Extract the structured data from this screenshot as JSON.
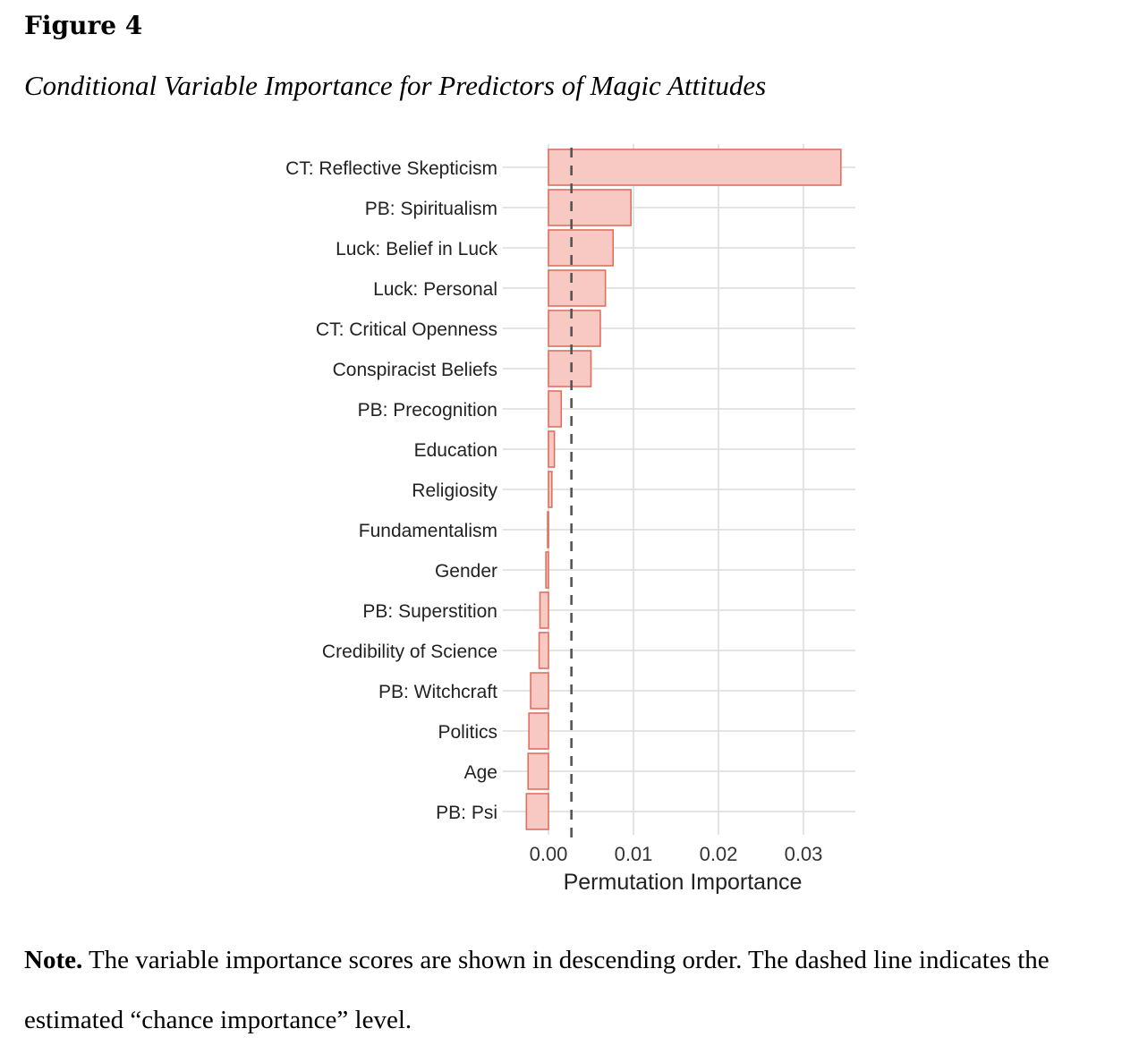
{
  "figure": {
    "label": "Figure 4",
    "title": "Conditional Variable Importance for Predictors of Magic Attitudes"
  },
  "note": {
    "lead": "Note.",
    "text": " The variable importance scores are shown in descending order. The dashed line indicates the estimated “chance importance” level."
  },
  "colors": {
    "bar_fill": "#f8c8c3",
    "bar_stroke": "#e0705f",
    "grid": "#dcdcdc",
    "dashed_line": "#555555"
  },
  "chart_data": {
    "type": "bar",
    "orientation": "horizontal",
    "categories": [
      "CT: Reflective Skepticism",
      "PB: Spiritualism",
      "Luck: Belief in Luck",
      "Luck: Personal",
      "CT: Critical Openness",
      "Conspiracist Beliefs",
      "PB: Precognition",
      "Education",
      "Religiosity",
      "Fundamentalism",
      "Gender",
      "PB: Superstition",
      "Credibility of Science",
      "PB: Witchcraft",
      "Politics",
      "Age",
      "PB: Psi"
    ],
    "values": [
      0.0344,
      0.0097,
      0.0076,
      0.0067,
      0.0061,
      0.005,
      0.0015,
      0.0007,
      0.0004,
      -0.0001,
      -0.0003,
      -0.001,
      -0.0011,
      -0.0021,
      -0.0023,
      -0.0024,
      -0.0026
    ],
    "reference_line": {
      "value": 0.0027,
      "style": "dashed"
    },
    "xlabel": "Permutation Importance",
    "ylabel": "",
    "xlim": [
      -0.0035,
      0.036
    ],
    "xticks": [
      0.0,
      0.01,
      0.02,
      0.03
    ],
    "xtick_labels": [
      "0.00",
      "0.01",
      "0.02",
      "0.03"
    ],
    "grid": true
  }
}
